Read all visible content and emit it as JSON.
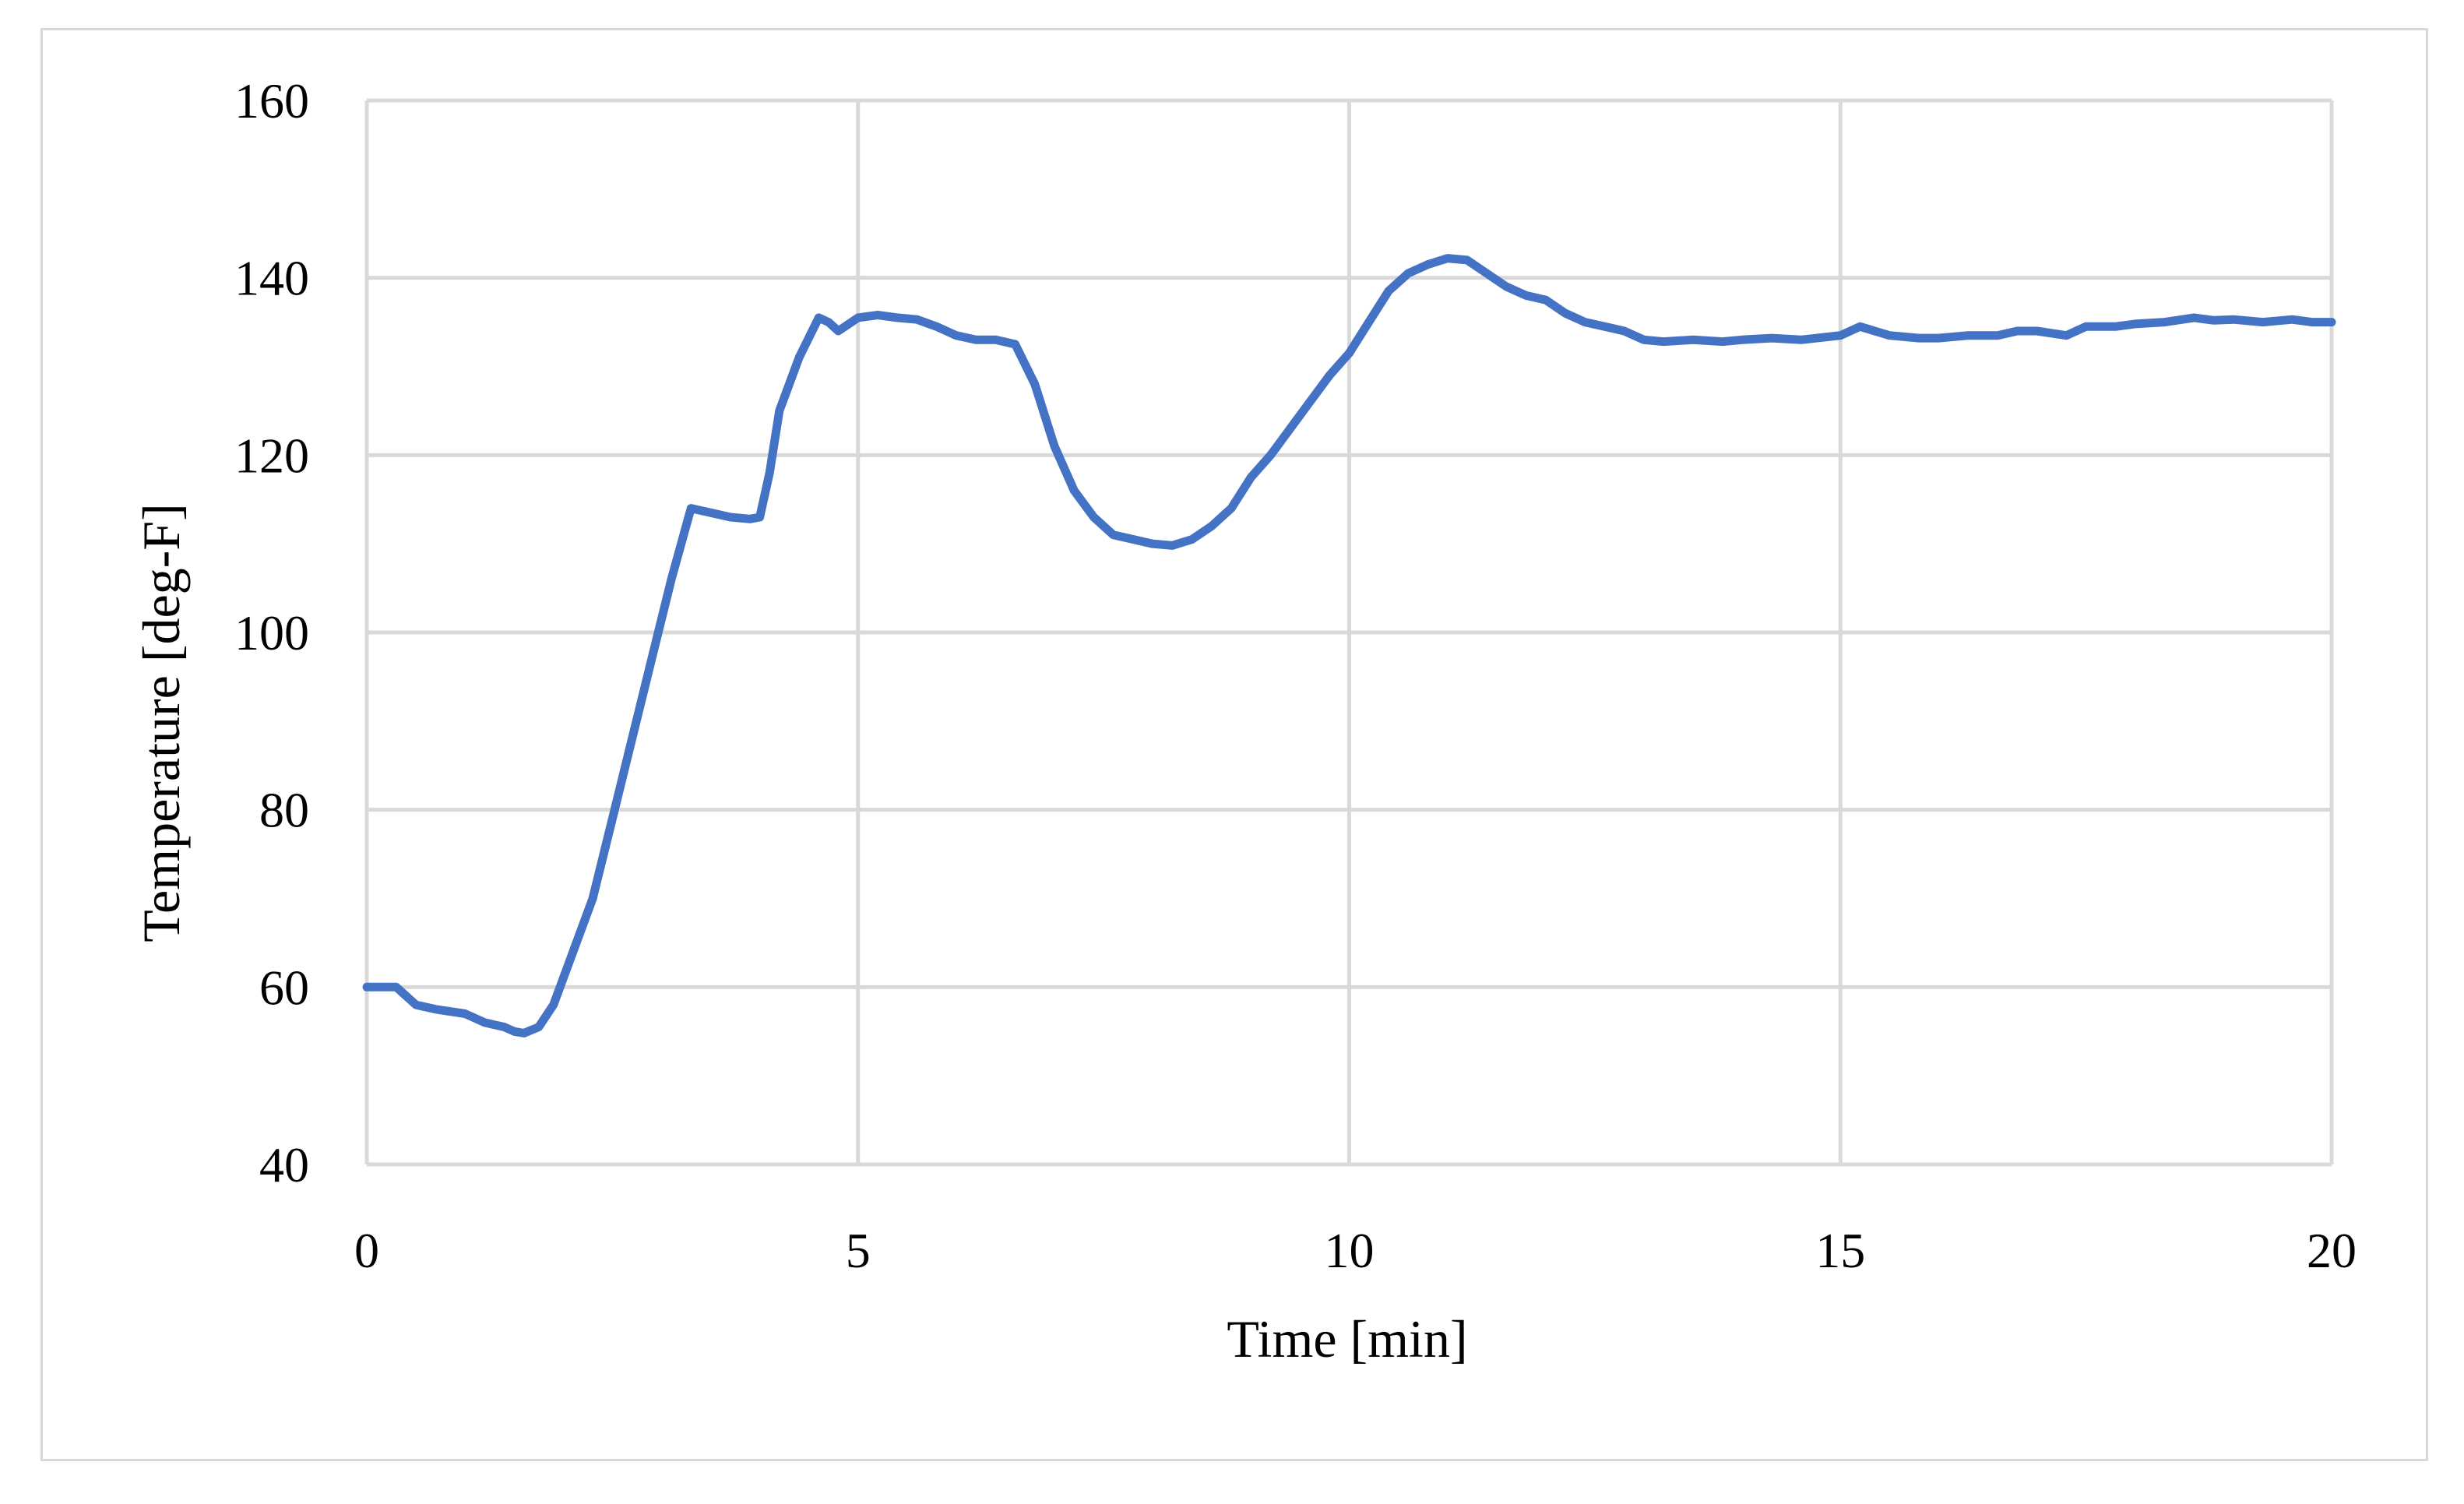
{
  "chart_data": {
    "type": "line",
    "title": "",
    "xlabel": "Time [min]",
    "ylabel": "Temperature [deg-F]",
    "xlim": [
      0,
      20
    ],
    "ylim": [
      40,
      160
    ],
    "xticks": [
      0,
      5,
      10,
      15,
      20
    ],
    "yticks": [
      40,
      60,
      80,
      100,
      120,
      140,
      160
    ],
    "xtick_labels": [
      "0",
      "5",
      "10",
      "15",
      "20"
    ],
    "ytick_labels": [
      "40",
      "60",
      "80",
      "100",
      "120",
      "140",
      "160"
    ],
    "grid": true,
    "legend": "none",
    "series": [
      {
        "color": "#4472c4",
        "x": [
          0,
          0.3,
          0.5,
          0.7,
          1.0,
          1.2,
          1.4,
          1.5,
          1.6,
          1.75,
          1.9,
          2.0,
          2.1,
          2.3,
          2.5,
          2.7,
          2.9,
          3.1,
          3.2,
          3.3,
          3.5,
          3.7,
          3.9,
          4.0,
          4.1,
          4.2,
          4.4,
          4.6,
          4.7,
          4.8,
          5.0,
          5.2,
          5.4,
          5.6,
          5.8,
          6.0,
          6.2,
          6.4,
          6.6,
          6.8,
          7.0,
          7.2,
          7.4,
          7.6,
          7.8,
          8.0,
          8.2,
          8.4,
          8.6,
          8.8,
          9.0,
          9.2,
          9.4,
          9.6,
          9.8,
          10.0,
          10.2,
          10.4,
          10.6,
          10.8,
          11.0,
          11.2,
          11.4,
          11.6,
          11.8,
          12.0,
          12.2,
          12.4,
          12.6,
          12.8,
          13.0,
          13.2,
          13.5,
          13.8,
          14.0,
          14.3,
          14.6,
          15.0,
          15.2,
          15.5,
          15.8,
          16.0,
          16.3,
          16.6,
          16.8,
          17.0,
          17.3,
          17.5,
          17.8,
          18.0,
          18.3,
          18.6,
          18.8,
          19.0,
          19.3,
          19.6,
          19.8,
          20.0
        ],
        "y": [
          60,
          60,
          58,
          57.5,
          57,
          56,
          55.5,
          55,
          54.8,
          55.5,
          58,
          61,
          64,
          70,
          79,
          88,
          97,
          106,
          110,
          114,
          113.5,
          113,
          112.8,
          113,
          118,
          125,
          131,
          135.5,
          135,
          134,
          135.5,
          135.8,
          135.5,
          135.3,
          134.5,
          133.5,
          133,
          133,
          132.5,
          128,
          121,
          116,
          113,
          111,
          110.5,
          110,
          109.8,
          110.5,
          112,
          114,
          117.5,
          120,
          123,
          126,
          129,
          131.5,
          135,
          138.5,
          140.5,
          141.5,
          142.2,
          142,
          140.5,
          139,
          138,
          137.5,
          136,
          135,
          134.5,
          134,
          133,
          132.8,
          133,
          132.8,
          133,
          133.2,
          133,
          133.5,
          134.5,
          133.5,
          133.2,
          133.2,
          133.5,
          133.5,
          134,
          134,
          133.5,
          134.5,
          134.5,
          134.8,
          135,
          135.5,
          135.2,
          135.3,
          135,
          135.3,
          135,
          135
        ]
      }
    ]
  }
}
